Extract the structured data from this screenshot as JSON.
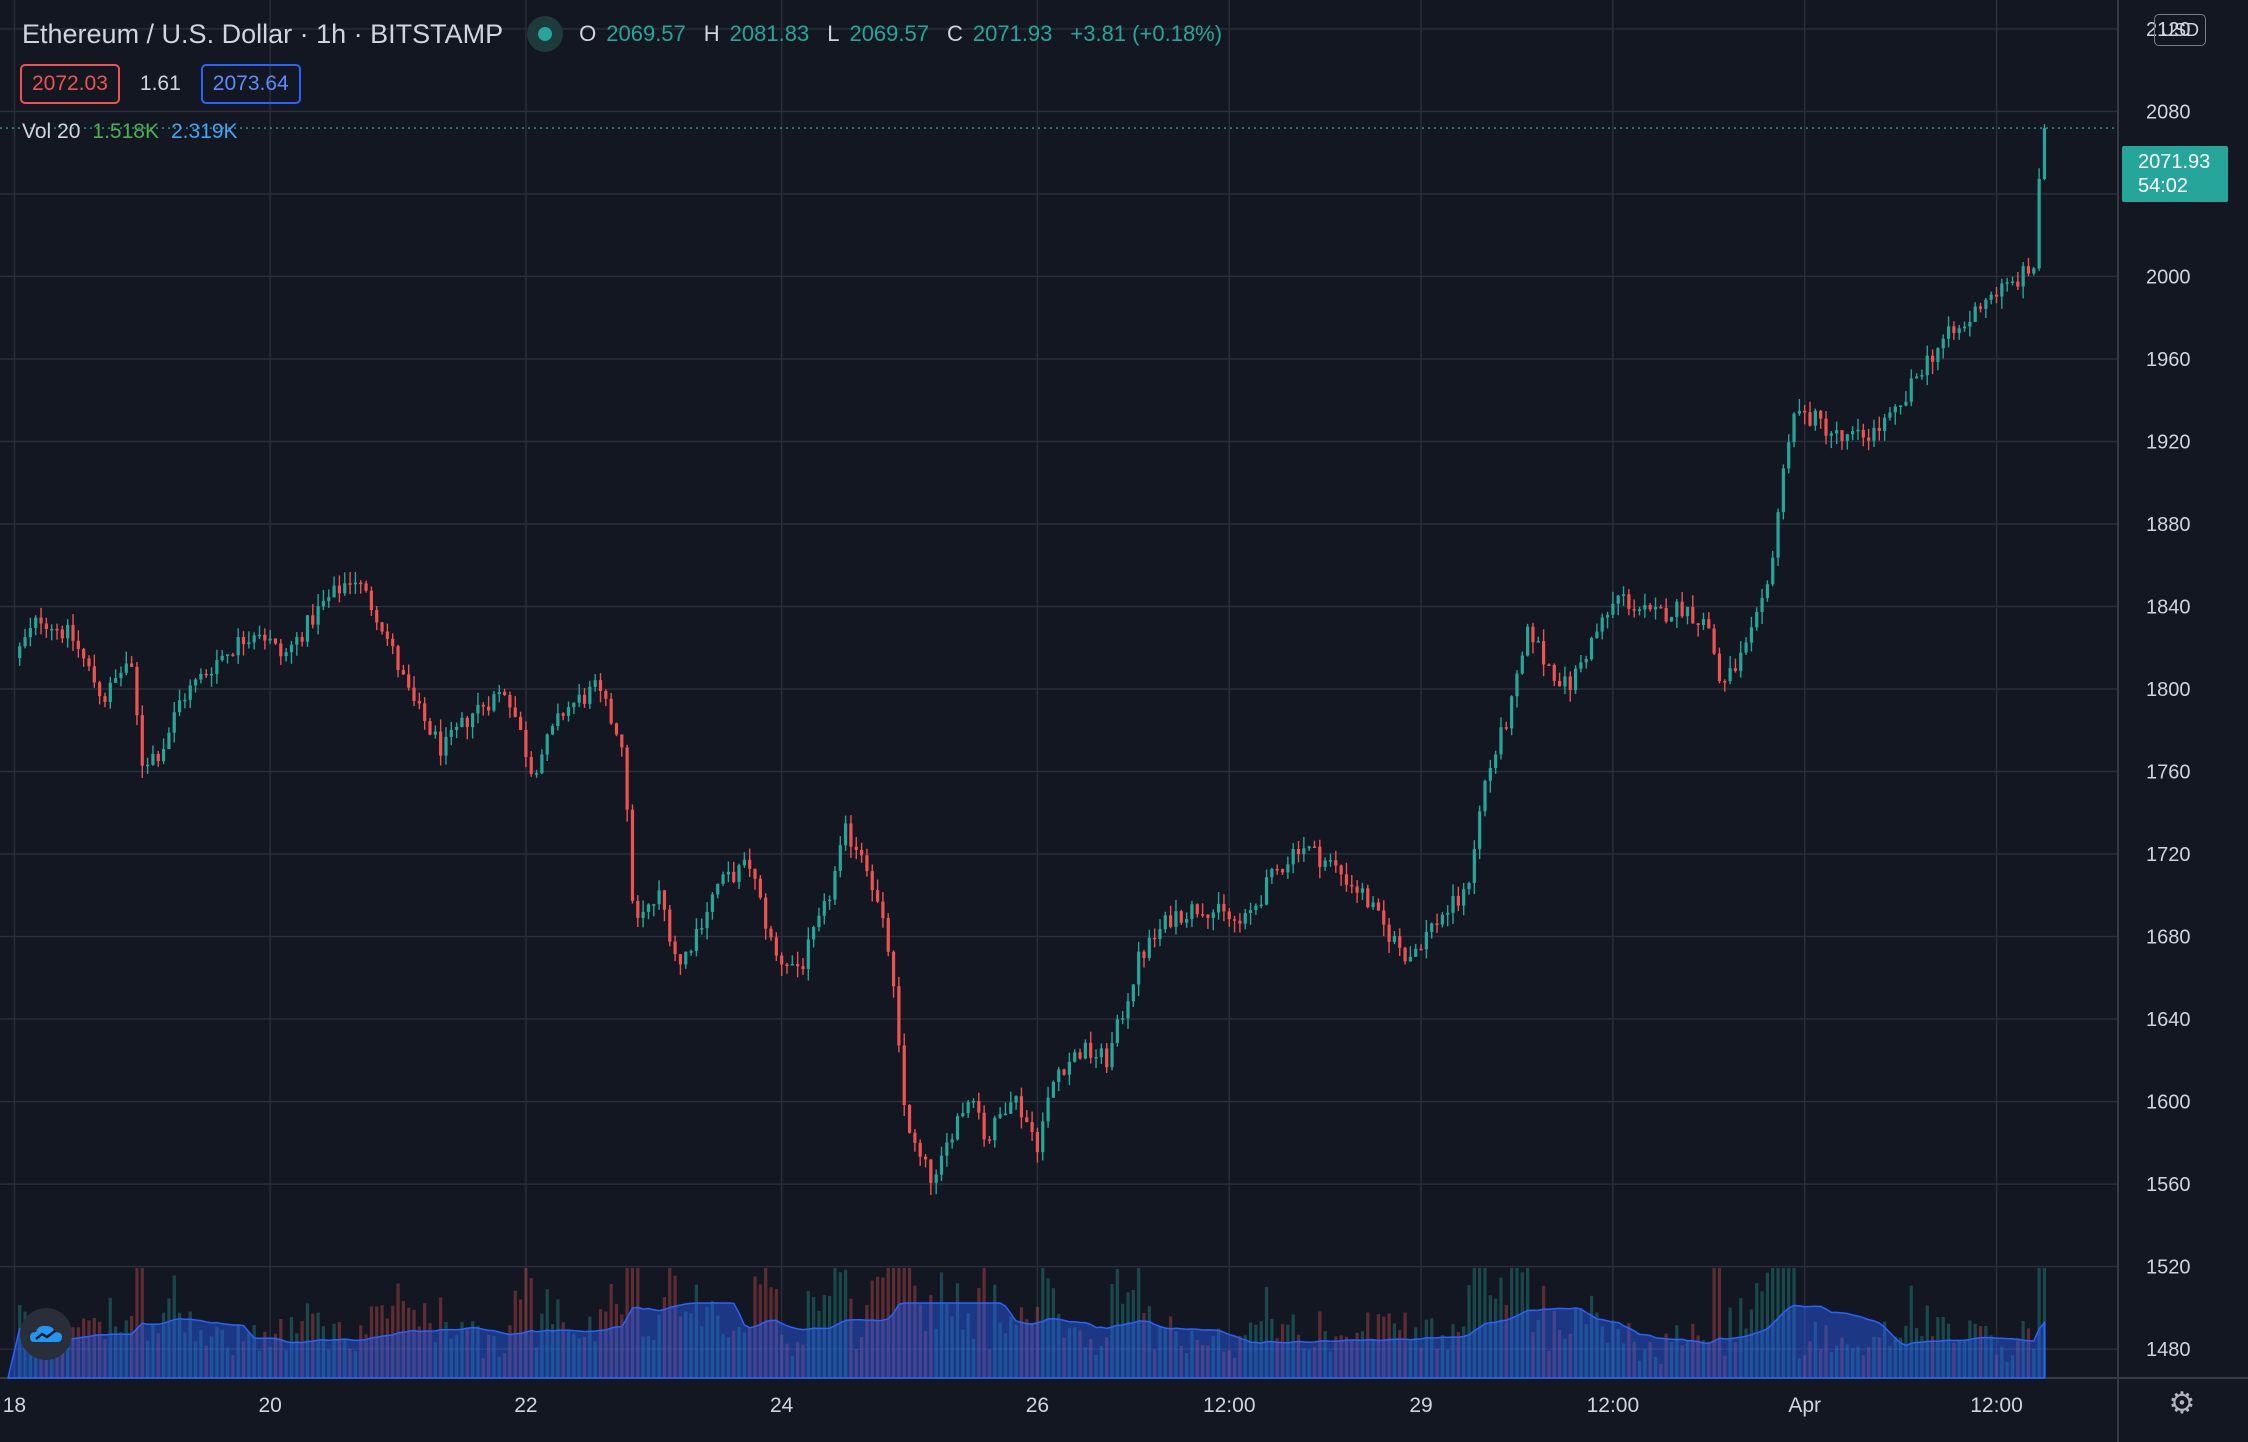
{
  "header": {
    "symbol": "Ethereum / U.S. Dollar · 1h · BITSTAMP",
    "ohlc": {
      "o_label": "O",
      "o": "2069.57",
      "h_label": "H",
      "h": "2081.83",
      "l_label": "L",
      "l": "2069.57",
      "c_label": "C",
      "c": "2071.93",
      "change": "+3.81 (+0.18%)"
    }
  },
  "quote": {
    "sell": "2072.03",
    "spread": "1.61",
    "buy": "2073.64"
  },
  "volume_legend": {
    "label": "Vol 20",
    "value": "1.518K",
    "ma": "2.319K"
  },
  "currency": "USD",
  "last_price": {
    "price": "2071.93",
    "countdown": "54:02"
  },
  "colors": {
    "up": "#26a69a",
    "down": "#ef5350",
    "volume_ma": "#2962ff",
    "background": "#131722",
    "grid": "#2a2e39"
  },
  "icons": {
    "logo": "tradingview-cloud-icon",
    "settings": "gear-icon"
  },
  "chart_data": {
    "type": "candlestick",
    "interval": "1h",
    "y_ticks": [
      2120,
      2080,
      2040,
      2000,
      1960,
      1920,
      1880,
      1840,
      1800,
      1760,
      1720,
      1680,
      1640,
      1600,
      1560,
      1520,
      1480
    ],
    "ylim": [
      1466,
      2134
    ],
    "x_ticks": [
      {
        "label": "18",
        "day": 0
      },
      {
        "label": "20",
        "day": 2
      },
      {
        "label": "22",
        "day": 4
      },
      {
        "label": "24",
        "day": 6
      },
      {
        "label": "26",
        "day": 8
      },
      {
        "label": "12:00",
        "day": 9.5
      },
      {
        "label": "29",
        "day": 11
      },
      {
        "label": "12:00",
        "day": 12.5
      },
      {
        "label": "Apr",
        "day": 14
      },
      {
        "label": "12:00",
        "day": 15.5
      }
    ],
    "xlim": [
      -0.05,
      16.45
    ],
    "price_path": [
      [
        0.0,
        1815
      ],
      [
        0.2,
        1835
      ],
      [
        0.45,
        1825
      ],
      [
        0.7,
        1795
      ],
      [
        0.9,
        1815
      ],
      [
        1.0,
        1765
      ],
      [
        1.15,
        1770
      ],
      [
        1.3,
        1795
      ],
      [
        1.6,
        1815
      ],
      [
        1.9,
        1830
      ],
      [
        2.1,
        1815
      ],
      [
        2.4,
        1840
      ],
      [
        2.65,
        1855
      ],
      [
        2.85,
        1835
      ],
      [
        3.1,
        1795
      ],
      [
        3.35,
        1770
      ],
      [
        3.6,
        1790
      ],
      [
        3.85,
        1800
      ],
      [
        4.05,
        1760
      ],
      [
        4.3,
        1790
      ],
      [
        4.55,
        1800
      ],
      [
        4.75,
        1775
      ],
      [
        4.85,
        1685
      ],
      [
        5.05,
        1700
      ],
      [
        5.2,
        1665
      ],
      [
        5.5,
        1705
      ],
      [
        5.75,
        1715
      ],
      [
        5.95,
        1670
      ],
      [
        6.15,
        1665
      ],
      [
        6.35,
        1695
      ],
      [
        6.5,
        1730
      ],
      [
        6.65,
        1720
      ],
      [
        6.85,
        1670
      ],
      [
        6.95,
        1600
      ],
      [
        7.05,
        1575
      ],
      [
        7.2,
        1560
      ],
      [
        7.35,
        1590
      ],
      [
        7.5,
        1605
      ],
      [
        7.6,
        1580
      ],
      [
        7.8,
        1605
      ],
      [
        8.0,
        1580
      ],
      [
        8.15,
        1615
      ],
      [
        8.35,
        1625
      ],
      [
        8.55,
        1620
      ],
      [
        8.8,
        1670
      ],
      [
        9.05,
        1690
      ],
      [
        9.3,
        1695
      ],
      [
        9.6,
        1685
      ],
      [
        9.85,
        1710
      ],
      [
        10.05,
        1725
      ],
      [
        10.3,
        1715
      ],
      [
        10.55,
        1700
      ],
      [
        10.7,
        1685
      ],
      [
        10.9,
        1670
      ],
      [
        11.15,
        1690
      ],
      [
        11.35,
        1700
      ],
      [
        11.5,
        1755
      ],
      [
        11.7,
        1790
      ],
      [
        11.85,
        1830
      ],
      [
        11.95,
        1815
      ],
      [
        12.15,
        1800
      ],
      [
        12.35,
        1825
      ],
      [
        12.55,
        1845
      ],
      [
        12.8,
        1835
      ],
      [
        13.05,
        1840
      ],
      [
        13.25,
        1830
      ],
      [
        13.35,
        1800
      ],
      [
        13.55,
        1820
      ],
      [
        13.7,
        1845
      ],
      [
        13.9,
        1935
      ],
      [
        14.1,
        1930
      ],
      [
        14.3,
        1920
      ],
      [
        14.55,
        1925
      ],
      [
        14.75,
        1935
      ],
      [
        14.9,
        1955
      ],
      [
        15.1,
        1970
      ],
      [
        15.25,
        1975
      ],
      [
        15.4,
        1990
      ],
      [
        15.6,
        1995
      ],
      [
        15.8,
        2005
      ],
      [
        15.85,
        2070
      ],
      [
        15.88,
        2072
      ]
    ],
    "last": {
      "price": 2071.93
    }
  }
}
